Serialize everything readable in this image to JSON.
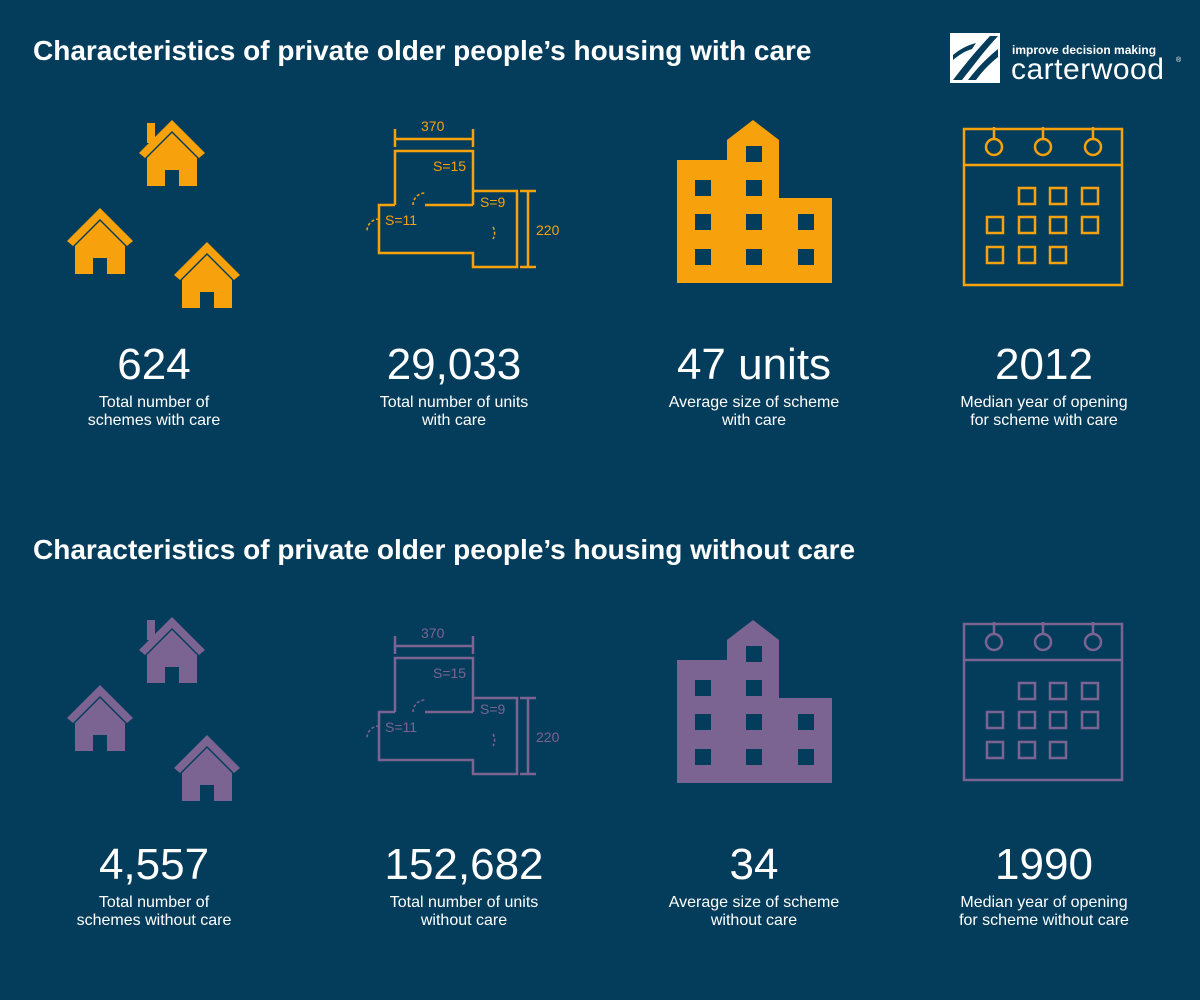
{
  "logo": {
    "tagline": "improve decision making",
    "name": "carterwood",
    "registered": "®"
  },
  "colors": {
    "background": "#043d5b",
    "with_care": "#f7a10c",
    "without_care": "#7b6491",
    "text": "#ffffff"
  },
  "floor_plan_labels": {
    "width": "370",
    "height": "220",
    "room_a": "S=15",
    "room_b": "S=9",
    "room_c": "S=11"
  },
  "with_care": {
    "title": "Characteristics of private older people’s housing with care",
    "stats": [
      {
        "icon": "houses-icon",
        "value": "624",
        "caption": [
          "Total number of",
          "schemes with care"
        ]
      },
      {
        "icon": "floor-plan-icon",
        "value": "29,033",
        "caption": [
          "Total number of units",
          "with care"
        ]
      },
      {
        "icon": "building-icon",
        "value": "47 units",
        "caption": [
          "Average size of scheme",
          "with care"
        ]
      },
      {
        "icon": "calendar-icon",
        "value": "2012",
        "caption": [
          "Median year of opening",
          "for scheme with care"
        ]
      }
    ]
  },
  "without_care": {
    "title": "Characteristics of private older people’s housing without care",
    "stats": [
      {
        "icon": "houses-icon",
        "value": "4,557",
        "caption": [
          "Total number of",
          "schemes without care"
        ]
      },
      {
        "icon": "floor-plan-icon",
        "value": "152,682",
        "caption": [
          "Total number of units",
          "without care"
        ]
      },
      {
        "icon": "building-icon",
        "value": "34",
        "caption": [
          "Average size of scheme",
          "without care"
        ]
      },
      {
        "icon": "calendar-icon",
        "value": "1990",
        "caption": [
          "Median year of opening",
          "for scheme without care"
        ]
      }
    ]
  }
}
